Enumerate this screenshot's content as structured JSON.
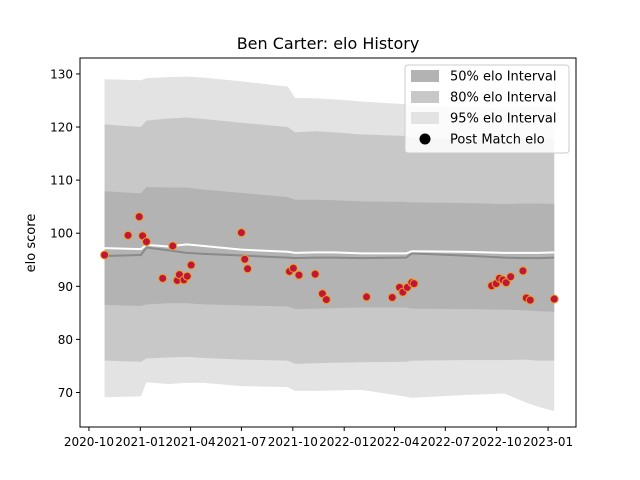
{
  "chart_data": {
    "type": "area",
    "title": "Ben Carter: elo History",
    "xlabel": "",
    "ylabel": "elo score",
    "xlim": [
      "2020-09-15",
      "2023-02-20"
    ],
    "ylim": [
      63.5,
      133
    ],
    "x_ticks": [
      "2020-10",
      "2021-01",
      "2021-04",
      "2021-07",
      "2021-10",
      "2022-01",
      "2022-04",
      "2022-07",
      "2022-10",
      "2023-01"
    ],
    "x_tick_dates": [
      "2020-10-01",
      "2021-01-01",
      "2021-04-01",
      "2021-07-01",
      "2021-10-01",
      "2022-01-01",
      "2022-04-01",
      "2022-07-01",
      "2022-10-01",
      "2023-01-01"
    ],
    "y_ticks": [
      70,
      80,
      90,
      100,
      110,
      120,
      130
    ],
    "legend_position": "top-right",
    "grid": false,
    "colors": {
      "band_50": "#b3b3b3",
      "band_80": "#c8c8c8",
      "band_95": "#e3e3e3",
      "median_line": "#8a8a8a",
      "mean_line": "#ffffff",
      "point_fill": "#c0163c",
      "point_edge": "#e8a020"
    },
    "legend": [
      {
        "label": "50% elo Interval",
        "kind": "patch",
        "color": "#b3b3b3"
      },
      {
        "label": "80% elo Interval",
        "kind": "patch",
        "color": "#c8c8c8"
      },
      {
        "label": "95% elo Interval",
        "kind": "patch",
        "color": "#e3e3e3"
      },
      {
        "label": "Post Match elo",
        "kind": "dot",
        "color": "#000000"
      }
    ],
    "bands": {
      "x": [
        "2020-10-29",
        "2021-01-02",
        "2021-01-12",
        "2021-02-20",
        "2021-03-25",
        "2021-04-25",
        "2021-07-01",
        "2021-09-22",
        "2021-10-05",
        "2021-11-12",
        "2021-12-15",
        "2022-02-01",
        "2022-04-22",
        "2022-05-02",
        "2022-08-01",
        "2022-10-15",
        "2022-11-20",
        "2022-12-15",
        "2023-01-12"
      ],
      "p95_upper": [
        129,
        128.8,
        129.2,
        129.4,
        129.5,
        129.3,
        128.6,
        127.6,
        125.5,
        125.4,
        125.2,
        124.8,
        124.3,
        124.0,
        123.8,
        123.5,
        123.8,
        124.0,
        123.8
      ],
      "p80_upper": [
        120.5,
        120.0,
        121.2,
        121.6,
        121.8,
        121.5,
        120.8,
        120.0,
        119.0,
        119.2,
        119.0,
        118.6,
        118.3,
        118.0,
        117.8,
        117.5,
        117.8,
        118.0,
        117.8
      ],
      "p50_upper": [
        107.9,
        107.5,
        108.7,
        108.6,
        108.6,
        108.2,
        107.6,
        106.8,
        106.3,
        106.3,
        106.2,
        106.0,
        105.9,
        105.8,
        105.7,
        105.5,
        105.6,
        105.6,
        105.5
      ],
      "p50_lower": [
        86.5,
        86.3,
        86.6,
        86.8,
        86.8,
        86.6,
        86.4,
        86.2,
        85.7,
        85.8,
        85.9,
        86.0,
        86.0,
        85.8,
        85.7,
        85.6,
        85.5,
        85.3,
        85.2
      ],
      "p80_lower": [
        76.0,
        75.8,
        76.4,
        76.6,
        76.7,
        76.5,
        76.2,
        76.0,
        75.4,
        75.5,
        75.6,
        75.7,
        75.8,
        76.0,
        76.1,
        76.1,
        76.2,
        76.0,
        76.0
      ],
      "p95_lower": [
        69.1,
        69.3,
        71.9,
        71.6,
        71.8,
        71.8,
        71.2,
        71.0,
        70.3,
        70.3,
        70.4,
        70.5,
        69.2,
        69.0,
        69.5,
        69.8,
        68.2,
        67.3,
        66.5
      ],
      "median": [
        95.7,
        95.9,
        97.3,
        96.8,
        96.3,
        96.1,
        95.8,
        95.4,
        95.3,
        95.4,
        95.4,
        95.3,
        95.4,
        96.2,
        95.8,
        95.4,
        95.3,
        95.3,
        95.4
      ],
      "mean": [
        97.2,
        97.0,
        97.8,
        97.5,
        97.9,
        97.6,
        96.9,
        96.5,
        96.3,
        96.4,
        96.4,
        96.2,
        96.2,
        96.6,
        96.5,
        96.3,
        96.3,
        96.3,
        96.4
      ]
    },
    "series": [
      {
        "name": "Post Match elo",
        "x": [
          "2020-10-29",
          "2020-12-10",
          "2020-12-30",
          "2021-01-05",
          "2021-01-12",
          "2021-02-10",
          "2021-02-28",
          "2021-03-08",
          "2021-03-12",
          "2021-03-20",
          "2021-03-26",
          "2021-04-02",
          "2021-07-01",
          "2021-07-07",
          "2021-07-12",
          "2021-09-25",
          "2021-10-02",
          "2021-10-12",
          "2021-11-10",
          "2021-11-23",
          "2021-11-30",
          "2022-02-10",
          "2022-03-28",
          "2022-04-10",
          "2022-04-16",
          "2022-04-24",
          "2022-05-02",
          "2022-05-06",
          "2022-09-22",
          "2022-09-30",
          "2022-10-06",
          "2022-10-12",
          "2022-10-18",
          "2022-10-26",
          "2022-11-17",
          "2022-11-23",
          "2022-11-30",
          "2023-01-12"
        ],
        "y": [
          95.9,
          99.6,
          103.1,
          99.5,
          98.4,
          91.5,
          97.6,
          91.1,
          92.2,
          91.2,
          91.9,
          94.0,
          100.1,
          95.1,
          93.3,
          92.8,
          93.4,
          92.1,
          92.3,
          88.6,
          87.5,
          88.0,
          87.9,
          89.8,
          88.9,
          89.8,
          90.7,
          90.5,
          90.1,
          90.5,
          91.5,
          91.2,
          90.7,
          91.8,
          92.9,
          87.8,
          87.4,
          87.6
        ]
      }
    ]
  }
}
